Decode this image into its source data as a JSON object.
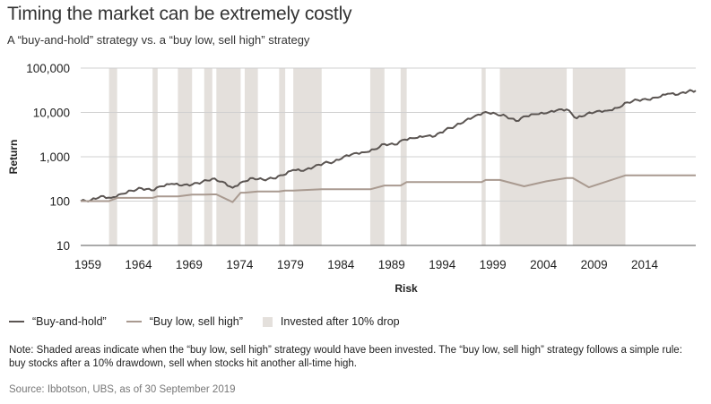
{
  "header": {
    "title": "Timing the market can be extremely costly",
    "subtitle": "A “buy-and-hold” strategy vs. a “buy low, sell high” strategy"
  },
  "legend": {
    "buy_hold": "“Buy-and-hold”",
    "buy_low": "“Buy low, sell high”",
    "invested": "Invested after 10% drop"
  },
  "note": "Note: Shaded areas indicate when the “buy low, sell high” strategy would have been invested. The “buy low, sell high” strategy follows a simple rule: buy stocks after a 10% drawdown, sell when stocks hit another all-time high.",
  "source": "Source: Ibbotson, UBS, as of 30 September 2019",
  "colors": {
    "buy_hold": "#5b5552",
    "buy_low": "#a99a90",
    "shade": "#e4e0dc",
    "grid": "#d0d0d0"
  },
  "chart_data": {
    "type": "line",
    "title": "Timing the market can be extremely costly",
    "xlabel": "Risk",
    "ylabel": "Return",
    "yscale": "log",
    "ylim": [
      10,
      100000
    ],
    "xlim": [
      1959,
      2019.75
    ],
    "yticks": [
      10,
      100,
      1000,
      10000,
      100000
    ],
    "ytick_labels": [
      "10",
      "100",
      "1,000",
      "10,000",
      "100,000"
    ],
    "xticks": [
      1959,
      1964,
      1969,
      1974,
      1979,
      1984,
      1989,
      1994,
      1999,
      2004,
      2009,
      2014
    ],
    "grid": "horizontal",
    "legend_position": "bottom",
    "shaded_periods": [
      [
        1961.8,
        1962.6
      ],
      [
        1966.1,
        1966.6
      ],
      [
        1968.6,
        1970.0
      ],
      [
        1971.2,
        1972.0
      ],
      [
        1972.4,
        1974.8
      ],
      [
        1975.2,
        1976.5
      ],
      [
        1978.6,
        1979.2
      ],
      [
        1980.0,
        1982.8
      ],
      [
        1987.6,
        1989.0
      ],
      [
        1990.6,
        1991.2
      ],
      [
        1998.6,
        1999.0
      ],
      [
        2000.4,
        2007.0
      ],
      [
        2007.6,
        2012.8
      ]
    ],
    "series": [
      {
        "name": "“Buy-and-hold”",
        "points": [
          [
            1959,
            100
          ],
          [
            1960,
            105
          ],
          [
            1961,
            130
          ],
          [
            1962,
            118
          ],
          [
            1963,
            145
          ],
          [
            1964,
            172
          ],
          [
            1965,
            195
          ],
          [
            1966,
            175
          ],
          [
            1967,
            215
          ],
          [
            1968,
            245
          ],
          [
            1969,
            225
          ],
          [
            1970,
            235
          ],
          [
            1971,
            270
          ],
          [
            1972,
            320
          ],
          [
            1973,
            275
          ],
          [
            1974,
            200
          ],
          [
            1975,
            275
          ],
          [
            1976,
            330
          ],
          [
            1977,
            305
          ],
          [
            1978,
            325
          ],
          [
            1979,
            385
          ],
          [
            1980,
            505
          ],
          [
            1981,
            480
          ],
          [
            1982,
            585
          ],
          [
            1983,
            720
          ],
          [
            1984,
            765
          ],
          [
            1985,
            1010
          ],
          [
            1986,
            1200
          ],
          [
            1987,
            1260
          ],
          [
            1988,
            1470
          ],
          [
            1989,
            1935
          ],
          [
            1990,
            1870
          ],
          [
            1991,
            2440
          ],
          [
            1992,
            2620
          ],
          [
            1993,
            2890
          ],
          [
            1994,
            2920
          ],
          [
            1995,
            4020
          ],
          [
            1996,
            4940
          ],
          [
            1997,
            6590
          ],
          [
            1998,
            8470
          ],
          [
            1999,
            10250
          ],
          [
            2000,
            9320
          ],
          [
            2001,
            8210
          ],
          [
            2002,
            6400
          ],
          [
            2003,
            8230
          ],
          [
            2004,
            9130
          ],
          [
            2005,
            9580
          ],
          [
            2006,
            11090
          ],
          [
            2007,
            11700
          ],
          [
            2008,
            7370
          ],
          [
            2009,
            9320
          ],
          [
            2010,
            10720
          ],
          [
            2011,
            10950
          ],
          [
            2012,
            12700
          ],
          [
            2013,
            16820
          ],
          [
            2014,
            19110
          ],
          [
            2015,
            19370
          ],
          [
            2016,
            21690
          ],
          [
            2017,
            26420
          ],
          [
            2018,
            25260
          ],
          [
            2019,
            30000
          ],
          [
            2019.75,
            31000
          ]
        ]
      },
      {
        "name": "“Buy low, sell high”",
        "points": [
          [
            1959,
            100
          ],
          [
            1961.8,
            100
          ],
          [
            1962.6,
            118
          ],
          [
            1966.1,
            118
          ],
          [
            1966.6,
            128
          ],
          [
            1968.6,
            128
          ],
          [
            1970.0,
            140
          ],
          [
            1971.2,
            140
          ],
          [
            1972.0,
            142
          ],
          [
            1972.4,
            142
          ],
          [
            1974.0,
            95
          ],
          [
            1974.8,
            155
          ],
          [
            1975.2,
            155
          ],
          [
            1976.5,
            165
          ],
          [
            1978.6,
            165
          ],
          [
            1979.2,
            172
          ],
          [
            1980.0,
            172
          ],
          [
            1982.8,
            185
          ],
          [
            1987.6,
            185
          ],
          [
            1989.0,
            225
          ],
          [
            1990.6,
            225
          ],
          [
            1991.2,
            268
          ],
          [
            1998.6,
            268
          ],
          [
            1999.0,
            300
          ],
          [
            2000.4,
            300
          ],
          [
            2002.8,
            215
          ],
          [
            2005.0,
            280
          ],
          [
            2007.0,
            330
          ],
          [
            2007.6,
            330
          ],
          [
            2009.2,
            205
          ],
          [
            2012.8,
            380
          ],
          [
            2019.75,
            380
          ]
        ]
      }
    ]
  }
}
